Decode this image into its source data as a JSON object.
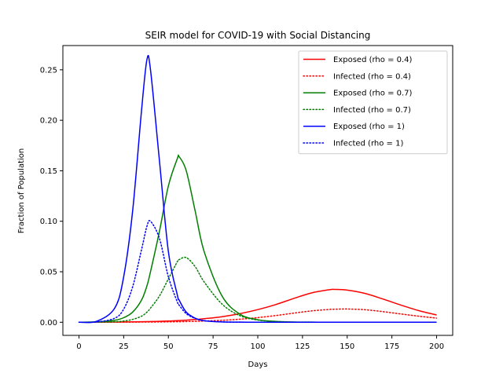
{
  "chart_data": {
    "type": "line",
    "title": "SEIR model for COVID-19 with Social Distancing",
    "xlabel": "Days",
    "ylabel": "Fraction of Population",
    "xlim": [
      -9,
      209
    ],
    "ylim": [
      -0.013,
      0.274
    ],
    "xticks": [
      0,
      25,
      50,
      75,
      100,
      125,
      150,
      175,
      200
    ],
    "xtick_labels": [
      "0",
      "25",
      "50",
      "75",
      "100",
      "125",
      "150",
      "175",
      "200"
    ],
    "yticks": [
      0.0,
      0.05,
      0.1,
      0.15,
      0.2,
      0.25
    ],
    "ytick_labels": [
      "0.00",
      "0.05",
      "0.10",
      "0.15",
      "0.20",
      "0.25"
    ],
    "grid": false,
    "legend_position": "top-right",
    "x": [
      0,
      10,
      20,
      25,
      30,
      35,
      38,
      40,
      45,
      50,
      55,
      56,
      60,
      65,
      70,
      80,
      90,
      100,
      110,
      120,
      130,
      140,
      143,
      150,
      160,
      170,
      180,
      190,
      200
    ],
    "series": [
      {
        "name": "Exposed (rho = 0.4)",
        "color": "#ff0000",
        "dash": "solid",
        "values": [
          0.0,
          0.0001,
          0.0002,
          0.0003,
          0.0004,
          0.0005,
          0.0006,
          0.0007,
          0.0009,
          0.0012,
          0.0016,
          0.0017,
          0.0021,
          0.0027,
          0.0035,
          0.0055,
          0.0085,
          0.0125,
          0.0175,
          0.0235,
          0.029,
          0.0322,
          0.0325,
          0.0318,
          0.0285,
          0.023,
          0.017,
          0.0115,
          0.0072
        ]
      },
      {
        "name": "Infected (rho = 0.4)",
        "color": "#ff0000",
        "dash": "dotted",
        "values": [
          0.0,
          0.0,
          0.0001,
          0.0001,
          0.0001,
          0.0002,
          0.0002,
          0.0002,
          0.0003,
          0.0004,
          0.0005,
          0.0005,
          0.0007,
          0.0009,
          0.0012,
          0.0019,
          0.003,
          0.0046,
          0.0066,
          0.009,
          0.0112,
          0.0127,
          0.0129,
          0.0131,
          0.0124,
          0.0105,
          0.0082,
          0.006,
          0.0041
        ]
      },
      {
        "name": "Exposed (rho = 0.7)",
        "color": "#008000",
        "dash": "solid",
        "values": [
          0.0,
          0.0004,
          0.002,
          0.0045,
          0.01,
          0.022,
          0.036,
          0.05,
          0.09,
          0.135,
          0.162,
          0.164,
          0.15,
          0.11,
          0.07,
          0.026,
          0.008,
          0.0025,
          0.0008,
          0.0002,
          0.0001,
          0.0,
          0.0,
          0.0,
          0.0,
          0.0,
          0.0,
          0.0,
          0.0
        ]
      },
      {
        "name": "Infected (rho = 0.7)",
        "color": "#008000",
        "dash": "dotted",
        "values": [
          0.0,
          0.0001,
          0.0005,
          0.0012,
          0.0028,
          0.006,
          0.01,
          0.014,
          0.026,
          0.043,
          0.06,
          0.062,
          0.064,
          0.055,
          0.04,
          0.018,
          0.0065,
          0.0022,
          0.0008,
          0.0002,
          0.0001,
          0.0,
          0.0,
          0.0,
          0.0,
          0.0,
          0.0,
          0.0,
          0.0
        ]
      },
      {
        "name": "Exposed (rho = 1)",
        "color": "#0000ff",
        "dash": "solid",
        "values": [
          0.0,
          0.001,
          0.014,
          0.045,
          0.11,
          0.21,
          0.26,
          0.25,
          0.16,
          0.07,
          0.027,
          0.022,
          0.01,
          0.004,
          0.0015,
          0.0003,
          0.0001,
          0.0,
          0.0,
          0.0,
          0.0,
          0.0,
          0.0,
          0.0,
          0.0,
          0.0,
          0.0,
          0.0,
          0.0
        ]
      },
      {
        "name": "Infected (rho = 1)",
        "color": "#0000ff",
        "dash": "dotted",
        "values": [
          0.0,
          0.0003,
          0.004,
          0.013,
          0.035,
          0.072,
          0.095,
          0.1,
          0.083,
          0.045,
          0.02,
          0.017,
          0.0085,
          0.0038,
          0.0016,
          0.0004,
          0.0001,
          0.0,
          0.0,
          0.0,
          0.0,
          0.0,
          0.0,
          0.0,
          0.0,
          0.0,
          0.0,
          0.0,
          0.0
        ]
      }
    ]
  }
}
